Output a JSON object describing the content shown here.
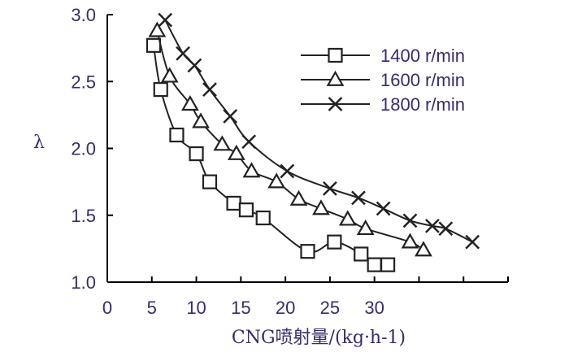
{
  "chart_data": {
    "type": "line",
    "xlabel": "CNG喷射量/(kg·h-1)",
    "ylabel": "λ",
    "xlim": [
      0,
      45
    ],
    "ylim": [
      1.0,
      3.0
    ],
    "xticks": [
      "0",
      "5",
      "10",
      "15",
      "20",
      "25",
      "30"
    ],
    "yticks": [
      "1.0",
      "1.5",
      "2.0",
      "2.5",
      "3.0"
    ],
    "legend_position": "top-right",
    "series": [
      {
        "name": "1400 r/min",
        "marker": "square",
        "x": [
          5.2,
          6.0,
          7.8,
          10.0,
          11.5,
          14.2,
          15.6,
          17.5,
          22.5,
          25.5,
          28.5,
          30.0,
          31.5
        ],
        "y": [
          2.77,
          2.44,
          2.1,
          1.96,
          1.75,
          1.59,
          1.54,
          1.48,
          1.23,
          1.3,
          1.21,
          1.13,
          1.13
        ]
      },
      {
        "name": "1600 r/min",
        "marker": "triangle",
        "x": [
          5.6,
          7.0,
          9.3,
          10.5,
          12.9,
          14.5,
          16.2,
          19.0,
          21.5,
          24.0,
          27.0,
          29.0,
          34.0,
          35.5
        ],
        "y": [
          2.88,
          2.54,
          2.33,
          2.2,
          2.03,
          1.96,
          1.83,
          1.75,
          1.62,
          1.55,
          1.47,
          1.4,
          1.3,
          1.24
        ]
      },
      {
        "name": "1800 r/min",
        "marker": "x",
        "x": [
          6.5,
          8.5,
          9.8,
          11.5,
          13.8,
          15.9,
          20.2,
          25.0,
          28.2,
          31.0,
          34.0,
          36.5,
          38.0,
          41.0
        ],
        "y": [
          2.96,
          2.71,
          2.62,
          2.44,
          2.24,
          2.05,
          1.83,
          1.7,
          1.63,
          1.55,
          1.46,
          1.42,
          1.4,
          1.3
        ]
      }
    ]
  }
}
